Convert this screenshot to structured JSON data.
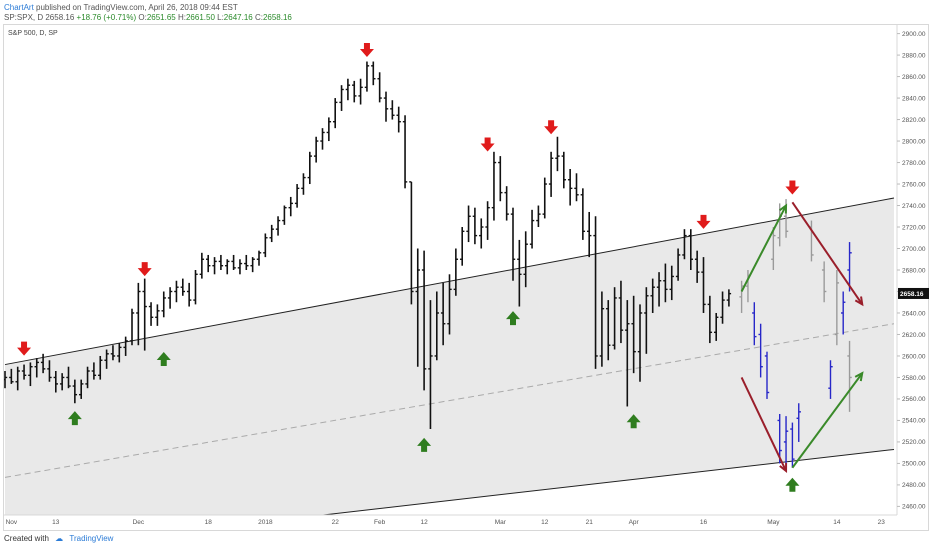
{
  "header": {
    "publisher": "ChartArt",
    "published_text": " published on TradingView.com, April 26, 2018 09:44 EST",
    "symbol": "SP:SPX, D",
    "last": "2658.16",
    "change": "+18.76 (+0.71%)",
    "o_label": "O:",
    "o_value": "2651.65",
    "h_label": "H:",
    "h_value": "2661.50",
    "l_label": "L:",
    "l_value": "2647.16",
    "c_label": "C:",
    "c_value": "2658.16"
  },
  "footer": {
    "created_with": "Created with",
    "brand": "TradingView"
  },
  "colors": {
    "bars": "#111111",
    "channel_fill": "#e9e9e9",
    "down_arrow": "#e01b1b",
    "up_arrow": "#2f7d1f",
    "projection_blue": "#2727c8",
    "projection_gray": "#9a9a9a",
    "projection_green_line": "#3a8a2a",
    "projection_red_line": "#9a1f2b",
    "last_price_tag": "#111111"
  },
  "chart_data": {
    "type": "ohlc",
    "legend_label": "S&P 500, D, SP",
    "y_range": [
      2452,
      2908
    ],
    "y_ticks": [
      2460,
      2480,
      2500,
      2520,
      2540,
      2560,
      2580,
      2600,
      2620,
      2640,
      2660,
      2680,
      2700,
      2720,
      2740,
      2760,
      2780,
      2800,
      2820,
      2840,
      2860,
      2880,
      2900
    ],
    "y_tick_labels": [
      "2460.00",
      "2480.00",
      "2500.00",
      "2520.00",
      "2540.00",
      "2560.00",
      "2580.00",
      "2600.00",
      "2620.00",
      "2640.00",
      "2660.00",
      "2680.00",
      "2700.00",
      "2720.00",
      "2740.00",
      "2760.00",
      "2780.00",
      "2800.00",
      "2820.00",
      "2840.00",
      "2860.00",
      "2880.00",
      "2900.00"
    ],
    "last_price_label": "2658.16",
    "last_price": 2658.16,
    "x_labels": [
      {
        "label": "Nov",
        "day": 1
      },
      {
        "label": "13",
        "day": 8
      },
      {
        "label": "Dec",
        "day": 21
      },
      {
        "label": "18",
        "day": 32
      },
      {
        "label": "2018",
        "day": 41
      },
      {
        "label": "22",
        "day": 52
      },
      {
        "label": "Feb",
        "day": 59
      },
      {
        "label": "12",
        "day": 66
      },
      {
        "label": "Mar",
        "day": 78
      },
      {
        "label": "12",
        "day": 85
      },
      {
        "label": "21",
        "day": 92
      },
      {
        "label": "Apr",
        "day": 99
      },
      {
        "label": "16",
        "day": 110
      },
      {
        "label": "May",
        "day": 121
      },
      {
        "label": "14",
        "day": 131
      },
      {
        "label": "23",
        "day": 138
      }
    ],
    "channel": {
      "upper_start": {
        "day": 0,
        "price": 2592
      },
      "upper_end": {
        "day": 140,
        "price": 2747
      },
      "lower_start": {
        "day": 0,
        "price": 2418
      },
      "lower_end": {
        "day": 140,
        "price": 2513
      },
      "mid_start": {
        "day": 0,
        "price": 2487
      },
      "mid_end": {
        "day": 140,
        "price": 2630
      }
    },
    "ohlc": [
      [
        2578,
        2586,
        2570,
        2580
      ],
      [
        2580,
        2588,
        2574,
        2576
      ],
      [
        2576,
        2590,
        2568,
        2586
      ],
      [
        2586,
        2592,
        2578,
        2582
      ],
      [
        2582,
        2594,
        2572,
        2590
      ],
      [
        2590,
        2598,
        2580,
        2594
      ],
      [
        2594,
        2602,
        2584,
        2588
      ],
      [
        2588,
        2596,
        2576,
        2580
      ],
      [
        2580,
        2586,
        2566,
        2574
      ],
      [
        2574,
        2584,
        2568,
        2580
      ],
      [
        2580,
        2590,
        2570,
        2572
      ],
      [
        2572,
        2578,
        2556,
        2564
      ],
      [
        2564,
        2578,
        2560,
        2574
      ],
      [
        2574,
        2590,
        2570,
        2586
      ],
      [
        2586,
        2594,
        2578,
        2582
      ],
      [
        2582,
        2600,
        2578,
        2596
      ],
      [
        2596,
        2606,
        2588,
        2602
      ],
      [
        2602,
        2610,
        2596,
        2600
      ],
      [
        2600,
        2612,
        2594,
        2608
      ],
      [
        2608,
        2618,
        2600,
        2614
      ],
      [
        2614,
        2644,
        2610,
        2640
      ],
      [
        2640,
        2668,
        2610,
        2660
      ],
      [
        2660,
        2672,
        2605,
        2646
      ],
      [
        2646,
        2650,
        2628,
        2636
      ],
      [
        2636,
        2648,
        2628,
        2642
      ],
      [
        2642,
        2660,
        2636,
        2654
      ],
      [
        2654,
        2664,
        2644,
        2660
      ],
      [
        2660,
        2670,
        2650,
        2664
      ],
      [
        2664,
        2672,
        2656,
        2660
      ],
      [
        2660,
        2668,
        2646,
        2652
      ],
      [
        2652,
        2680,
        2648,
        2676
      ],
      [
        2676,
        2696,
        2672,
        2690
      ],
      [
        2690,
        2694,
        2678,
        2684
      ],
      [
        2684,
        2692,
        2676,
        2688
      ],
      [
        2688,
        2694,
        2680,
        2684
      ],
      [
        2684,
        2690,
        2676,
        2688
      ],
      [
        2688,
        2694,
        2680,
        2682
      ],
      [
        2682,
        2690,
        2676,
        2686
      ],
      [
        2686,
        2694,
        2680,
        2684
      ],
      [
        2684,
        2692,
        2678,
        2690
      ],
      [
        2690,
        2698,
        2684,
        2696
      ],
      [
        2696,
        2714,
        2692,
        2710
      ],
      [
        2710,
        2722,
        2706,
        2718
      ],
      [
        2718,
        2730,
        2712,
        2726
      ],
      [
        2726,
        2740,
        2722,
        2738
      ],
      [
        2738,
        2748,
        2730,
        2742
      ],
      [
        2742,
        2760,
        2738,
        2756
      ],
      [
        2756,
        2770,
        2750,
        2766
      ],
      [
        2766,
        2790,
        2760,
        2786
      ],
      [
        2786,
        2804,
        2780,
        2800
      ],
      [
        2800,
        2812,
        2792,
        2808
      ],
      [
        2808,
        2822,
        2800,
        2818
      ],
      [
        2818,
        2840,
        2812,
        2836
      ],
      [
        2836,
        2852,
        2828,
        2848
      ],
      [
        2848,
        2858,
        2838,
        2852
      ],
      [
        2852,
        2856,
        2836,
        2842
      ],
      [
        2842,
        2858,
        2834,
        2850
      ],
      [
        2850,
        2874,
        2846,
        2870
      ],
      [
        2870,
        2874,
        2852,
        2858
      ],
      [
        2858,
        2864,
        2836,
        2840
      ],
      [
        2840,
        2846,
        2818,
        2830
      ],
      [
        2830,
        2838,
        2820,
        2824
      ],
      [
        2824,
        2832,
        2808,
        2818
      ],
      [
        2818,
        2824,
        2756,
        2762
      ],
      [
        2762,
        2762,
        2648,
        2660
      ],
      [
        2660,
        2700,
        2590,
        2680
      ],
      [
        2680,
        2698,
        2568,
        2588
      ],
      [
        2588,
        2652,
        2532,
        2600
      ],
      [
        2600,
        2660,
        2596,
        2640
      ],
      [
        2640,
        2668,
        2610,
        2630
      ],
      [
        2630,
        2676,
        2620,
        2662
      ],
      [
        2662,
        2700,
        2656,
        2690
      ],
      [
        2690,
        2720,
        2684,
        2716
      ],
      [
        2716,
        2740,
        2706,
        2730
      ],
      [
        2730,
        2738,
        2704,
        2712
      ],
      [
        2712,
        2728,
        2700,
        2720
      ],
      [
        2720,
        2744,
        2708,
        2738
      ],
      [
        2738,
        2790,
        2726,
        2780
      ],
      [
        2780,
        2786,
        2744,
        2752
      ],
      [
        2752,
        2758,
        2726,
        2732
      ],
      [
        2732,
        2738,
        2670,
        2690
      ],
      [
        2690,
        2708,
        2646,
        2676
      ],
      [
        2676,
        2716,
        2664,
        2704
      ],
      [
        2704,
        2736,
        2700,
        2726
      ],
      [
        2726,
        2740,
        2720,
        2732
      ],
      [
        2732,
        2766,
        2728,
        2760
      ],
      [
        2760,
        2790,
        2748,
        2784
      ],
      [
        2784,
        2804,
        2772,
        2786
      ],
      [
        2786,
        2790,
        2756,
        2764
      ],
      [
        2764,
        2774,
        2740,
        2756
      ],
      [
        2756,
        2770,
        2744,
        2750
      ],
      [
        2750,
        2756,
        2708,
        2716
      ],
      [
        2716,
        2734,
        2692,
        2712
      ],
      [
        2712,
        2730,
        2588,
        2600
      ],
      [
        2600,
        2660,
        2590,
        2644
      ],
      [
        2644,
        2652,
        2596,
        2610
      ],
      [
        2610,
        2664,
        2606,
        2654
      ],
      [
        2654,
        2670,
        2612,
        2624
      ],
      [
        2624,
        2652,
        2553,
        2630
      ],
      [
        2630,
        2656,
        2584,
        2604
      ],
      [
        2604,
        2648,
        2576,
        2640
      ],
      [
        2640,
        2664,
        2602,
        2656
      ],
      [
        2656,
        2672,
        2640,
        2664
      ],
      [
        2664,
        2678,
        2646,
        2670
      ],
      [
        2670,
        2686,
        2650,
        2662
      ],
      [
        2662,
        2684,
        2652,
        2674
      ],
      [
        2674,
        2700,
        2670,
        2694
      ],
      [
        2694,
        2718,
        2690,
        2712
      ],
      [
        2712,
        2718,
        2680,
        2690
      ],
      [
        2690,
        2698,
        2668,
        2678
      ],
      [
        2678,
        2692,
        2640,
        2648
      ],
      [
        2648,
        2656,
        2612,
        2622
      ],
      [
        2622,
        2640,
        2614,
        2636
      ],
      [
        2636,
        2660,
        2630,
        2652
      ],
      [
        2652,
        2662,
        2646,
        2658
      ]
    ],
    "projection": [
      {
        "day": 116,
        "o": 2655,
        "h": 2670,
        "l": 2640,
        "c": 2665,
        "color": "gray"
      },
      {
        "day": 117,
        "o": 2665,
        "h": 2680,
        "l": 2650,
        "c": 2675,
        "color": "gray"
      },
      {
        "day": 118,
        "o": 2640,
        "h": 2650,
        "l": 2610,
        "c": 2618,
        "color": "blue"
      },
      {
        "day": 119,
        "o": 2620,
        "h": 2630,
        "l": 2580,
        "c": 2590,
        "color": "blue"
      },
      {
        "day": 120,
        "o": 2600,
        "h": 2604,
        "l": 2560,
        "c": 2566,
        "color": "blue"
      },
      {
        "day": 122,
        "o": 2540,
        "h": 2546,
        "l": 2500,
        "c": 2512,
        "color": "blue"
      },
      {
        "day": 123,
        "o": 2520,
        "h": 2544,
        "l": 2494,
        "c": 2530,
        "color": "blue"
      },
      {
        "day": 124,
        "o": 2532,
        "h": 2538,
        "l": 2496,
        "c": 2504,
        "color": "blue"
      },
      {
        "day": 125,
        "o": 2542,
        "h": 2556,
        "l": 2520,
        "c": 2548,
        "color": "blue"
      },
      {
        "day": 121,
        "o": 2690,
        "h": 2720,
        "l": 2680,
        "c": 2712,
        "color": "gray"
      },
      {
        "day": 122,
        "o": 2710,
        "h": 2742,
        "l": 2702,
        "c": 2730,
        "color": "gray"
      },
      {
        "day": 123,
        "o": 2730,
        "h": 2746,
        "l": 2710,
        "c": 2716,
        "color": "gray"
      },
      {
        "day": 127,
        "o": 2720,
        "h": 2726,
        "l": 2688,
        "c": 2694,
        "color": "gray"
      },
      {
        "day": 129,
        "o": 2680,
        "h": 2688,
        "l": 2650,
        "c": 2660,
        "color": "gray"
      },
      {
        "day": 130,
        "o": 2570,
        "h": 2596,
        "l": 2560,
        "c": 2590,
        "color": "blue"
      },
      {
        "day": 132,
        "o": 2640,
        "h": 2660,
        "l": 2620,
        "c": 2650,
        "color": "blue"
      },
      {
        "day": 133,
        "o": 2680,
        "h": 2706,
        "l": 2660,
        "c": 2696,
        "color": "blue"
      },
      {
        "day": 133,
        "o": 2600,
        "h": 2614,
        "l": 2548,
        "c": 2580,
        "color": "gray"
      },
      {
        "day": 131,
        "o": 2620,
        "h": 2680,
        "l": 2610,
        "c": 2668,
        "color": "gray"
      }
    ],
    "projection_lines": [
      {
        "from": {
          "day": 116,
          "price": 2660
        },
        "to": {
          "day": 123,
          "price": 2740
        },
        "color": "green"
      },
      {
        "from": {
          "day": 116,
          "price": 2580
        },
        "to": {
          "day": 123,
          "price": 2493
        },
        "color": "red"
      },
      {
        "from": {
          "day": 124,
          "price": 2743
        },
        "to": {
          "day": 135,
          "price": 2648
        },
        "color": "red"
      },
      {
        "from": {
          "day": 124,
          "price": 2496
        },
        "to": {
          "day": 135,
          "price": 2584
        },
        "color": "green"
      }
    ],
    "down_arrows": [
      {
        "day": 3,
        "price": 2604
      },
      {
        "day": 22,
        "price": 2678
      },
      {
        "day": 57,
        "price": 2882
      },
      {
        "day": 76,
        "price": 2794
      },
      {
        "day": 86,
        "price": 2810
      },
      {
        "day": 110,
        "price": 2722
      },
      {
        "day": 124,
        "price": 2754
      }
    ],
    "up_arrows": [
      {
        "day": 11,
        "price": 2545
      },
      {
        "day": 25,
        "price": 2600
      },
      {
        "day": 66,
        "price": 2520
      },
      {
        "day": 80,
        "price": 2638
      },
      {
        "day": 99,
        "price": 2542
      },
      {
        "day": 124,
        "price": 2483
      }
    ]
  }
}
